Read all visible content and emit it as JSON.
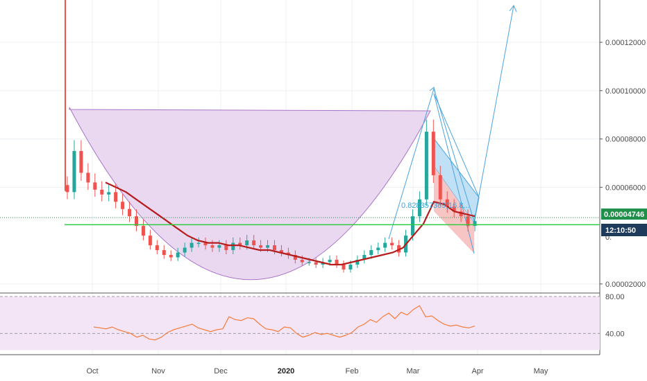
{
  "chart_data": [
    {
      "type": "candlestick",
      "title": "",
      "x_tick_labels": [
        "Oct",
        "Nov",
        "Dec",
        "2020",
        "Feb",
        "Mar",
        "Apr",
        "May"
      ],
      "y_tick_labels": [
        "0.00012000",
        "0.00010000",
        "0.00008000",
        "0.00006000",
        "0.00002000"
      ],
      "y_tick_values": [
        0.00012,
        0.0001,
        8e-05,
        6e-05,
        2e-05
      ],
      "ylim": [
        1.71e-05,
        0.0001375
      ],
      "y_tick_partial": "0.",
      "last_price": "0.00004746",
      "last_price_value": 4.746e-05,
      "countdown": "12:10:50",
      "annotation": "0.828357369(16.8...",
      "support_level": 4.45e-05,
      "close_series": [
        5.8e-05,
        7.5e-05,
        6.6e-05,
        6.2e-05,
        5.9e-05,
        5.7e-05,
        5.8e-05,
        5.4e-05,
        5.1e-05,
        4.8e-05,
        4.4e-05,
        4e-05,
        3.6e-05,
        3.4e-05,
        3.2e-05,
        3.1e-05,
        3.3e-05,
        3.5e-05,
        3.7e-05,
        3.7e-05,
        3.6e-05,
        3.5e-05,
        3.6e-05,
        3.4e-05,
        3.7e-05,
        3.6e-05,
        3.8e-05,
        3.6e-05,
        3.5e-05,
        3.6e-05,
        3.4e-05,
        3.3e-05,
        3.2e-05,
        3e-05,
        2.9e-05,
        2.9e-05,
        2.8e-05,
        2.9e-05,
        3e-05,
        2.8e-05,
        2.6e-05,
        2.8e-05,
        3e-05,
        3.2e-05,
        3.4e-05,
        3.5e-05,
        3.7e-05,
        3.6e-05,
        3.3e-05,
        4e-05,
        4.8e-05,
        5.5e-05,
        8.3e-05,
        6.5e-05,
        5.5e-05,
        5.2e-05,
        5e-05,
        4.8e-05,
        4.4e-05,
        4.6e-05
      ],
      "ma_series": [
        6.2e-05,
        6e-05,
        5.8e-05,
        5.5e-05,
        5.2e-05,
        4.9e-05,
        4.6e-05,
        4.3e-05,
        4e-05,
        3.8e-05,
        3.7e-05,
        3.7e-05,
        3.6e-05,
        3.6e-05,
        3.5e-05,
        3.4e-05,
        3.4e-05,
        3.3e-05,
        3.2e-05,
        3.1e-05,
        3e-05,
        2.9e-05,
        2.8e-05,
        2.8e-05,
        2.9e-05,
        3e-05,
        3.1e-05,
        3.2e-05,
        3.3e-05,
        3.5e-05,
        4e-05,
        4.5e-05,
        5.4e-05,
        5.3e-05,
        5e-05,
        4.9e-05,
        4.8e-05
      ],
      "pattern": "cup and handle",
      "colors": {
        "up": "#26a69a",
        "down": "#ef5350",
        "ma": "#b71c1c",
        "cup": "#c9a0dc",
        "flag": "#90caf9",
        "drawing": "#4aa3df",
        "support": "#2ecc40"
      }
    },
    {
      "type": "line",
      "title": "",
      "y_tick_labels": [
        "80.00",
        "40.00"
      ],
      "y_tick_values": [
        80,
        40
      ],
      "ylim": [
        20,
        80
      ],
      "values": [
        47,
        46,
        45,
        47,
        44,
        42,
        40,
        36,
        38,
        34,
        33,
        36,
        41,
        44,
        46,
        48,
        50,
        46,
        44,
        42,
        44,
        45,
        58,
        55,
        54,
        57,
        56,
        50,
        45,
        44,
        42,
        47,
        46,
        40,
        36,
        38,
        41,
        39,
        40,
        38,
        36,
        38,
        41,
        47,
        50,
        55,
        52,
        58,
        62,
        56,
        63,
        60,
        66,
        70,
        58,
        59,
        54,
        50,
        48,
        49,
        47,
        46,
        48
      ],
      "color": "#f57c3c",
      "band_color": "#f3e5f5"
    }
  ]
}
